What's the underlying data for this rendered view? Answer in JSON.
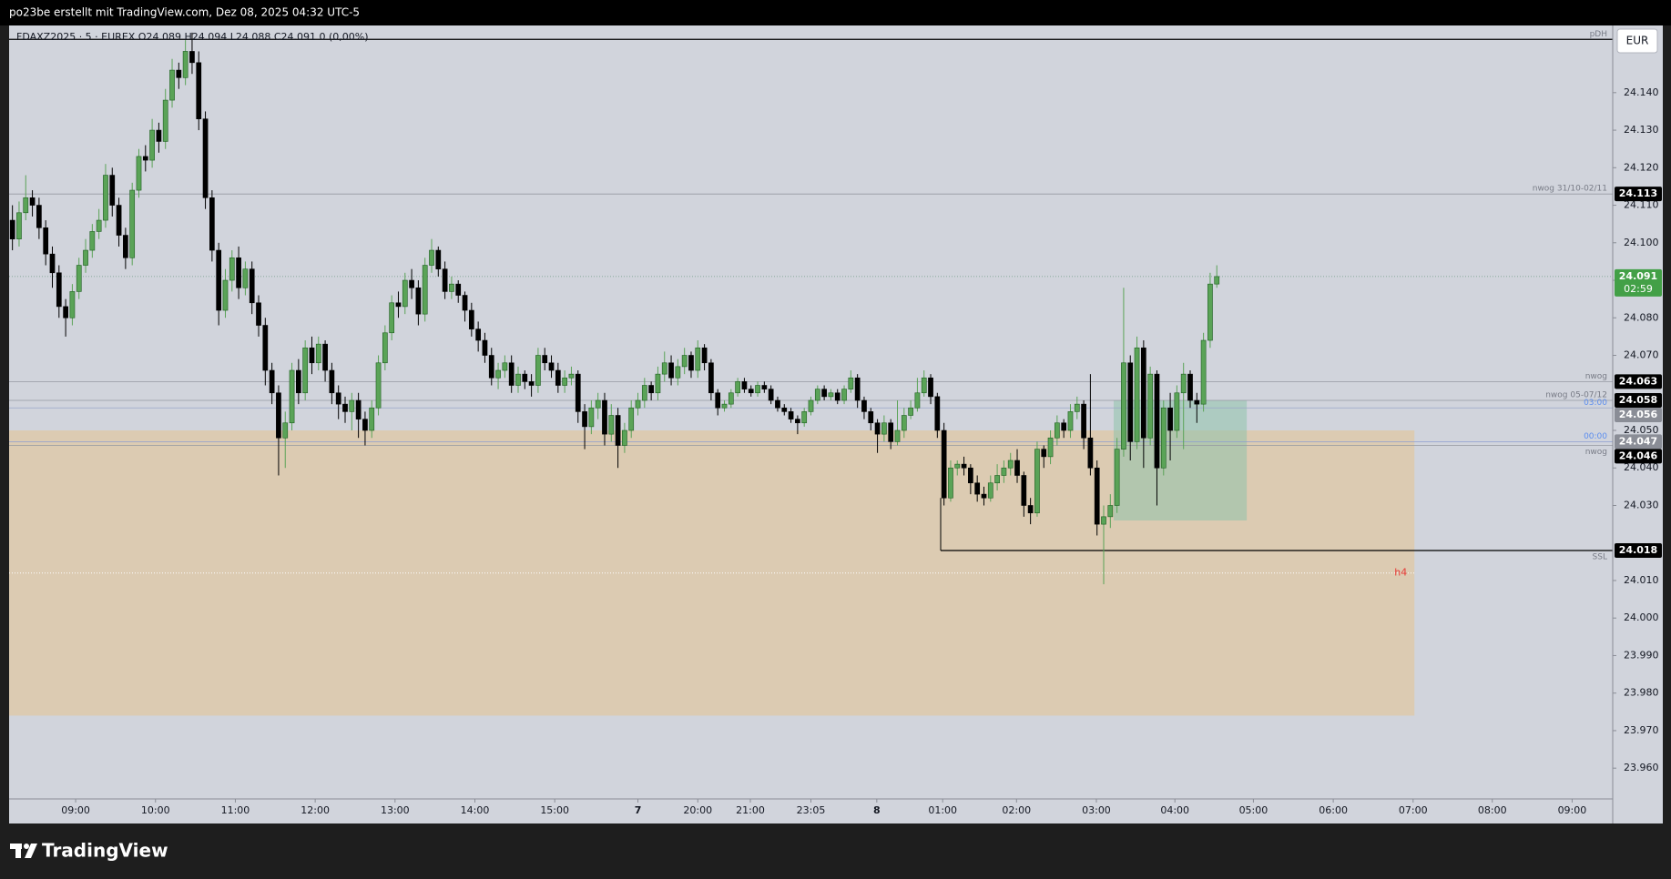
{
  "header": "po23be erstellt mit TradingView.com, Dez 08, 2025 04:32 UTC-5",
  "footer_logo": "TradingView",
  "chart_data": {
    "type": "candlestick",
    "legend": "FDAXZ2025 · 5 · EUREX   O24.089  H24.094  L24.088  C24.091  0 (0,00%)",
    "currency": "EUR",
    "up_color": "#5aa357",
    "down_color": "#000000",
    "open": [
      24.106,
      24.101,
      24.108,
      24.112,
      24.11,
      24.104,
      24.097,
      24.092,
      24.083,
      24.08,
      24.087,
      24.094,
      24.098,
      24.103,
      24.106,
      24.118,
      24.11,
      24.102,
      24.096,
      24.114,
      24.123,
      24.122,
      24.13,
      24.127,
      24.138,
      24.146,
      24.144,
      24.151,
      24.148,
      24.133,
      24.112,
      24.098,
      24.082,
      24.09,
      24.096,
      24.088,
      24.093,
      24.084,
      24.078,
      24.066,
      24.06,
      24.048,
      24.052,
      24.066,
      24.06,
      24.072,
      24.068,
      24.073,
      24.066,
      24.06,
      24.057,
      24.055,
      24.058,
      24.053,
      24.05,
      24.056,
      24.068,
      24.076,
      24.084,
      24.083,
      24.09,
      24.088,
      24.081,
      24.094,
      24.098,
      24.093,
      24.087,
      24.089,
      24.086,
      24.082,
      24.077,
      24.074,
      24.07,
      24.064,
      24.066,
      24.068,
      24.062,
      24.065,
      24.063,
      24.062,
      24.07,
      24.068,
      24.066,
      24.062,
      24.064,
      24.065,
      24.055,
      24.051,
      24.056,
      24.058,
      24.049,
      24.054,
      24.046,
      24.05,
      24.056,
      24.058,
      24.062,
      24.06,
      24.065,
      24.068,
      24.064,
      24.067,
      24.07,
      24.066,
      24.072,
      24.068,
      24.06,
      24.056,
      24.057,
      24.06,
      24.063,
      24.061,
      24.06,
      24.062,
      24.061,
      24.058,
      24.056,
      24.055,
      24.053,
      24.052,
      24.055,
      24.058,
      24.061,
      24.059,
      24.06,
      24.058,
      24.061,
      24.064,
      24.058,
      24.055,
      24.052,
      24.049,
      24.052,
      24.047,
      24.05,
      24.054,
      24.056,
      24.06,
      24.064,
      24.059,
      24.05,
      24.032,
      24.04,
      24.041,
      24.04,
      24.036,
      24.033,
      24.032,
      24.036,
      24.038,
      24.04,
      24.042,
      24.038,
      24.03,
      24.028,
      24.045,
      24.043,
      24.048,
      24.052,
      24.05,
      24.055,
      24.057,
      24.048,
      24.04,
      24.025,
      24.027,
      24.03,
      24.045,
      24.068,
      24.047,
      24.072,
      24.048,
      24.065,
      24.04,
      24.056,
      24.05,
      24.06,
      24.065,
      24.058,
      24.057,
      24.074,
      24.089
    ],
    "high": [
      24.11,
      24.111,
      24.118,
      24.114,
      24.112,
      24.106,
      24.099,
      24.094,
      24.085,
      24.089,
      24.096,
      24.101,
      24.105,
      24.109,
      24.121,
      24.12,
      24.112,
      24.104,
      24.116,
      24.125,
      24.126,
      24.133,
      24.132,
      24.141,
      24.149,
      24.148,
      24.154,
      24.156,
      24.151,
      24.135,
      24.114,
      24.1,
      24.093,
      24.098,
      24.099,
      24.095,
      24.095,
      24.086,
      24.08,
      24.068,
      24.062,
      24.055,
      24.068,
      24.069,
      24.074,
      24.075,
      24.075,
      24.074,
      24.068,
      24.062,
      24.059,
      24.06,
      24.06,
      24.055,
      24.058,
      24.07,
      24.078,
      24.086,
      24.087,
      24.092,
      24.093,
      24.09,
      24.096,
      24.101,
      24.099,
      24.095,
      24.091,
      24.09,
      24.087,
      24.084,
      24.079,
      24.076,
      24.072,
      24.068,
      24.07,
      24.07,
      24.067,
      24.066,
      24.065,
      24.072,
      24.072,
      24.07,
      24.068,
      24.066,
      24.067,
      24.066,
      24.057,
      24.058,
      24.06,
      24.06,
      24.057,
      24.056,
      24.052,
      24.058,
      24.06,
      24.064,
      24.063,
      24.067,
      24.071,
      24.07,
      24.069,
      24.072,
      24.071,
      24.074,
      24.073,
      24.069,
      24.061,
      24.058,
      24.061,
      24.064,
      24.064,
      24.062,
      24.063,
      24.063,
      24.062,
      24.059,
      24.057,
      24.056,
      24.054,
      24.056,
      24.059,
      24.062,
      24.062,
      24.061,
      24.061,
      24.062,
      24.066,
      24.065,
      24.059,
      24.056,
      24.053,
      24.054,
      24.053,
      24.058,
      24.056,
      24.058,
      24.064,
      24.066,
      24.065,
      24.06,
      24.052,
      24.042,
      24.042,
      24.043,
      24.041,
      24.038,
      24.035,
      24.038,
      24.041,
      24.042,
      24.044,
      24.045,
      24.039,
      24.032,
      24.047,
      24.046,
      24.05,
      24.054,
      24.053,
      24.057,
      24.059,
      24.058,
      24.065,
      24.042,
      24.03,
      24.033,
      24.048,
      24.088,
      24.07,
      24.075,
      24.074,
      24.067,
      24.066,
      24.058,
      24.06,
      24.062,
      24.068,
      24.066,
      24.06,
      24.076,
      24.092,
      24.094
    ],
    "low": [
      24.098,
      24.099,
      24.106,
      24.107,
      24.101,
      24.094,
      24.088,
      24.08,
      24.075,
      24.078,
      24.085,
      24.092,
      24.096,
      24.101,
      24.104,
      24.107,
      24.099,
      24.093,
      24.094,
      24.112,
      24.119,
      24.12,
      24.124,
      24.125,
      24.136,
      24.141,
      24.142,
      24.145,
      24.13,
      24.109,
      24.095,
      24.078,
      24.08,
      24.087,
      24.085,
      24.086,
      24.081,
      24.075,
      24.062,
      24.057,
      24.038,
      24.04,
      24.05,
      24.057,
      24.058,
      24.065,
      24.066,
      24.063,
      24.057,
      24.053,
      24.052,
      24.05,
      24.048,
      24.046,
      24.048,
      24.054,
      24.066,
      24.074,
      24.08,
      24.081,
      24.085,
      24.078,
      24.079,
      24.092,
      24.091,
      24.085,
      24.085,
      24.084,
      24.079,
      24.075,
      24.071,
      24.068,
      24.062,
      24.061,
      24.064,
      24.06,
      24.06,
      24.061,
      24.059,
      24.06,
      24.066,
      24.064,
      24.06,
      24.06,
      24.062,
      24.052,
      24.045,
      24.049,
      24.053,
      24.046,
      24.047,
      24.04,
      24.044,
      24.048,
      24.054,
      24.056,
      24.058,
      24.058,
      24.063,
      24.062,
      24.062,
      24.065,
      24.064,
      24.064,
      24.066,
      24.058,
      24.054,
      24.055,
      24.056,
      24.059,
      24.06,
      24.059,
      24.059,
      24.06,
      24.057,
      24.055,
      24.054,
      24.052,
      24.049,
      24.051,
      24.054,
      24.057,
      24.058,
      24.058,
      24.057,
      24.057,
      24.06,
      24.056,
      24.053,
      24.05,
      24.044,
      24.047,
      24.045,
      24.046,
      24.048,
      24.053,
      24.055,
      24.059,
      24.057,
      24.048,
      24.03,
      24.031,
      24.038,
      24.038,
      24.033,
      24.031,
      24.03,
      24.031,
      24.034,
      24.036,
      24.038,
      24.036,
      24.027,
      24.025,
      24.027,
      24.04,
      24.041,
      24.046,
      24.048,
      24.048,
      24.053,
      24.045,
      24.038,
      24.022,
      24.009,
      24.024,
      24.028,
      24.043,
      24.042,
      24.045,
      24.04,
      24.046,
      24.03,
      24.038,
      24.042,
      24.048,
      24.045,
      24.056,
      24.052,
      24.055,
      24.072,
      24.088
    ],
    "close": [
      24.101,
      24.108,
      24.112,
      24.11,
      24.104,
      24.097,
      24.092,
      24.083,
      24.08,
      24.087,
      24.094,
      24.098,
      24.103,
      24.106,
      24.118,
      24.11,
      24.102,
      24.096,
      24.114,
      24.123,
      24.122,
      24.13,
      24.127,
      24.138,
      24.146,
      24.144,
      24.151,
      24.148,
      24.133,
      24.112,
      24.098,
      24.082,
      24.09,
      24.096,
      24.088,
      24.093,
      24.084,
      24.078,
      24.066,
      24.06,
      24.048,
      24.052,
      24.066,
      24.06,
      24.072,
      24.068,
      24.073,
      24.066,
      24.06,
      24.057,
      24.055,
      24.058,
      24.053,
      24.05,
      24.056,
      24.068,
      24.076,
      24.084,
      24.083,
      24.09,
      24.088,
      24.081,
      24.094,
      24.098,
      24.093,
      24.087,
      24.089,
      24.086,
      24.082,
      24.077,
      24.074,
      24.07,
      24.064,
      24.066,
      24.068,
      24.062,
      24.065,
      24.063,
      24.062,
      24.07,
      24.068,
      24.066,
      24.062,
      24.064,
      24.065,
      24.055,
      24.051,
      24.056,
      24.058,
      24.049,
      24.054,
      24.046,
      24.05,
      24.056,
      24.058,
      24.062,
      24.06,
      24.065,
      24.068,
      24.064,
      24.067,
      24.07,
      24.066,
      24.072,
      24.068,
      24.06,
      24.056,
      24.057,
      24.06,
      24.063,
      24.061,
      24.06,
      24.062,
      24.061,
      24.058,
      24.056,
      24.055,
      24.053,
      24.052,
      24.055,
      24.058,
      24.061,
      24.059,
      24.06,
      24.058,
      24.061,
      24.064,
      24.058,
      24.055,
      24.052,
      24.049,
      24.052,
      24.047,
      24.05,
      24.054,
      24.056,
      24.06,
      24.064,
      24.059,
      24.05,
      24.032,
      24.04,
      24.041,
      24.04,
      24.036,
      24.033,
      24.032,
      24.036,
      24.038,
      24.04,
      24.042,
      24.038,
      24.03,
      24.028,
      24.045,
      24.043,
      24.048,
      24.052,
      24.05,
      24.055,
      24.057,
      24.048,
      24.04,
      24.025,
      24.027,
      24.03,
      24.045,
      24.068,
      24.047,
      24.072,
      24.048,
      24.065,
      24.04,
      24.056,
      24.05,
      24.06,
      24.065,
      24.058,
      24.057,
      24.074,
      24.089,
      24.091
    ],
    "xlim": [
      0,
      241
    ],
    "xticks": [
      {
        "value": 10,
        "label": "09:00"
      },
      {
        "value": 22,
        "label": "10:00"
      },
      {
        "value": 34,
        "label": "11:00"
      },
      {
        "value": 46,
        "label": "12:00"
      },
      {
        "value": 58,
        "label": "13:00"
      },
      {
        "value": 70,
        "label": "14:00"
      },
      {
        "value": 82,
        "label": "15:00"
      },
      {
        "value": 94.5,
        "label": "7",
        "bold": true
      },
      {
        "value": 103.5,
        "label": "20:00"
      },
      {
        "value": 111.4,
        "label": "21:00"
      },
      {
        "value": 120.5,
        "label": "23:05"
      },
      {
        "value": 130.4,
        "label": "8",
        "bold": true
      },
      {
        "value": 140.3,
        "label": "01:00"
      },
      {
        "value": 151.4,
        "label": "02:00"
      },
      {
        "value": 163.4,
        "label": "03:00"
      },
      {
        "value": 175.2,
        "label": "04:00"
      },
      {
        "value": 187,
        "label": "05:00"
      },
      {
        "value": 199,
        "label": "06:00"
      },
      {
        "value": 211,
        "label": "07:00"
      },
      {
        "value": 222.9,
        "label": "08:00"
      },
      {
        "value": 234.9,
        "label": "09:00"
      }
    ],
    "ylim": [
      23.9518,
      24.1579
    ],
    "yticks": [
      {
        "value": 23.96,
        "label": "23.960"
      },
      {
        "value": 23.97,
        "label": "23.970"
      },
      {
        "value": 23.98,
        "label": "23.980"
      },
      {
        "value": 23.99,
        "label": "23.990"
      },
      {
        "value": 24.0,
        "label": "24.000"
      },
      {
        "value": 24.01,
        "label": "24.010"
      },
      {
        "value": 24.03,
        "label": "24.030"
      },
      {
        "value": 24.04,
        "label": "24.040"
      },
      {
        "value": 24.05,
        "label": "24.050"
      },
      {
        "value": 24.07,
        "label": "24.070"
      },
      {
        "value": 24.08,
        "label": "24.080"
      },
      {
        "value": 24.09,
        "label": "24.090"
      },
      {
        "value": 24.1,
        "label": "24.100"
      },
      {
        "value": 24.11,
        "label": "24.110"
      },
      {
        "value": 24.12,
        "label": "24.120"
      },
      {
        "value": 24.13,
        "label": "24.130"
      },
      {
        "value": 24.14,
        "label": "24.140"
      }
    ],
    "grid": false,
    "zones": [
      {
        "label": "h4",
        "xlim": [
          0,
          211.2
        ],
        "ylim": [
          23.974,
          24.05
        ],
        "line": 24.012,
        "color": "#dccbb2"
      }
    ],
    "boxes": [
      {
        "xlim": [
          166,
          186
        ],
        "ylim": [
          24.026,
          24.058
        ],
        "color": "#8fc3ab"
      }
    ],
    "levels": [
      {
        "label": "pDH",
        "value": 24.1542,
        "color": "#000000"
      },
      {
        "label": "nwog 31/10-02/11",
        "value": 24.113,
        "badge": true,
        "color": "#9598a1"
      },
      {
        "value": 24.091,
        "badge": true,
        "badge_color": "#43a047",
        "countdown": "02:59",
        "color": "#6f9a86",
        "style": "dotted"
      },
      {
        "label": "nwog",
        "value": 24.063,
        "badge": true,
        "color": "#9598a1"
      },
      {
        "label": "nwog 05-07/12",
        "value": 24.058,
        "badge": true,
        "color": "#9598a1"
      },
      {
        "label": "03:00",
        "value": 24.056,
        "badge": true,
        "badge_color": "#8a8d96",
        "color": "#9aa7c8",
        "label_color": "#5b8def"
      },
      {
        "label": "00:00",
        "value": 24.047,
        "badge": true,
        "badge_color": "#8a8d96",
        "color": "#8d9dd0",
        "label_color": "#5b8def"
      },
      {
        "label": "nwog",
        "value": 24.046,
        "badge": true,
        "color": "#9598a1",
        "below": true
      },
      {
        "label": "SSL",
        "value": 24.018,
        "badge": true,
        "from": 140,
        "color": "#000000",
        "below": true
      }
    ]
  }
}
